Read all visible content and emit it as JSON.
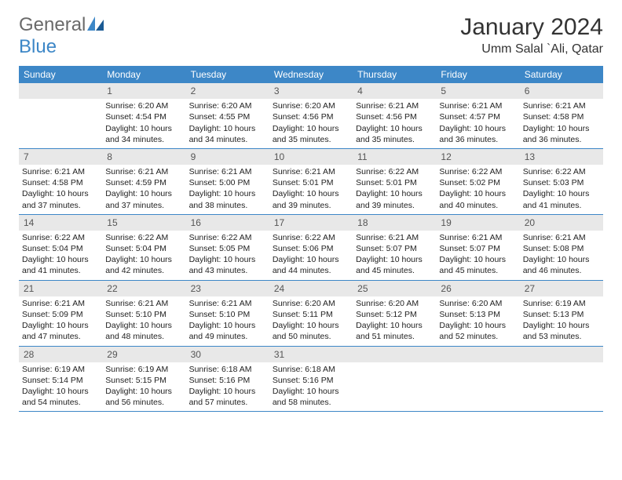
{
  "logo": {
    "word1": "General",
    "word2": "Blue"
  },
  "title": "January 2024",
  "location": "Umm Salal `Ali, Qatar",
  "colors": {
    "header_bg": "#3d87c7",
    "daynum_bg": "#e8e8e8",
    "text": "#222222",
    "logo_gray": "#6a6a6a",
    "logo_blue": "#3d87c7"
  },
  "weekdays": [
    "Sunday",
    "Monday",
    "Tuesday",
    "Wednesday",
    "Thursday",
    "Friday",
    "Saturday"
  ],
  "weeks": [
    [
      {
        "num": "",
        "sunrise": "",
        "sunset": "",
        "daylight1": "",
        "daylight2": ""
      },
      {
        "num": "1",
        "sunrise": "Sunrise: 6:20 AM",
        "sunset": "Sunset: 4:54 PM",
        "daylight1": "Daylight: 10 hours",
        "daylight2": "and 34 minutes."
      },
      {
        "num": "2",
        "sunrise": "Sunrise: 6:20 AM",
        "sunset": "Sunset: 4:55 PM",
        "daylight1": "Daylight: 10 hours",
        "daylight2": "and 34 minutes."
      },
      {
        "num": "3",
        "sunrise": "Sunrise: 6:20 AM",
        "sunset": "Sunset: 4:56 PM",
        "daylight1": "Daylight: 10 hours",
        "daylight2": "and 35 minutes."
      },
      {
        "num": "4",
        "sunrise": "Sunrise: 6:21 AM",
        "sunset": "Sunset: 4:56 PM",
        "daylight1": "Daylight: 10 hours",
        "daylight2": "and 35 minutes."
      },
      {
        "num": "5",
        "sunrise": "Sunrise: 6:21 AM",
        "sunset": "Sunset: 4:57 PM",
        "daylight1": "Daylight: 10 hours",
        "daylight2": "and 36 minutes."
      },
      {
        "num": "6",
        "sunrise": "Sunrise: 6:21 AM",
        "sunset": "Sunset: 4:58 PM",
        "daylight1": "Daylight: 10 hours",
        "daylight2": "and 36 minutes."
      }
    ],
    [
      {
        "num": "7",
        "sunrise": "Sunrise: 6:21 AM",
        "sunset": "Sunset: 4:58 PM",
        "daylight1": "Daylight: 10 hours",
        "daylight2": "and 37 minutes."
      },
      {
        "num": "8",
        "sunrise": "Sunrise: 6:21 AM",
        "sunset": "Sunset: 4:59 PM",
        "daylight1": "Daylight: 10 hours",
        "daylight2": "and 37 minutes."
      },
      {
        "num": "9",
        "sunrise": "Sunrise: 6:21 AM",
        "sunset": "Sunset: 5:00 PM",
        "daylight1": "Daylight: 10 hours",
        "daylight2": "and 38 minutes."
      },
      {
        "num": "10",
        "sunrise": "Sunrise: 6:21 AM",
        "sunset": "Sunset: 5:01 PM",
        "daylight1": "Daylight: 10 hours",
        "daylight2": "and 39 minutes."
      },
      {
        "num": "11",
        "sunrise": "Sunrise: 6:22 AM",
        "sunset": "Sunset: 5:01 PM",
        "daylight1": "Daylight: 10 hours",
        "daylight2": "and 39 minutes."
      },
      {
        "num": "12",
        "sunrise": "Sunrise: 6:22 AM",
        "sunset": "Sunset: 5:02 PM",
        "daylight1": "Daylight: 10 hours",
        "daylight2": "and 40 minutes."
      },
      {
        "num": "13",
        "sunrise": "Sunrise: 6:22 AM",
        "sunset": "Sunset: 5:03 PM",
        "daylight1": "Daylight: 10 hours",
        "daylight2": "and 41 minutes."
      }
    ],
    [
      {
        "num": "14",
        "sunrise": "Sunrise: 6:22 AM",
        "sunset": "Sunset: 5:04 PM",
        "daylight1": "Daylight: 10 hours",
        "daylight2": "and 41 minutes."
      },
      {
        "num": "15",
        "sunrise": "Sunrise: 6:22 AM",
        "sunset": "Sunset: 5:04 PM",
        "daylight1": "Daylight: 10 hours",
        "daylight2": "and 42 minutes."
      },
      {
        "num": "16",
        "sunrise": "Sunrise: 6:22 AM",
        "sunset": "Sunset: 5:05 PM",
        "daylight1": "Daylight: 10 hours",
        "daylight2": "and 43 minutes."
      },
      {
        "num": "17",
        "sunrise": "Sunrise: 6:22 AM",
        "sunset": "Sunset: 5:06 PM",
        "daylight1": "Daylight: 10 hours",
        "daylight2": "and 44 minutes."
      },
      {
        "num": "18",
        "sunrise": "Sunrise: 6:21 AM",
        "sunset": "Sunset: 5:07 PM",
        "daylight1": "Daylight: 10 hours",
        "daylight2": "and 45 minutes."
      },
      {
        "num": "19",
        "sunrise": "Sunrise: 6:21 AM",
        "sunset": "Sunset: 5:07 PM",
        "daylight1": "Daylight: 10 hours",
        "daylight2": "and 45 minutes."
      },
      {
        "num": "20",
        "sunrise": "Sunrise: 6:21 AM",
        "sunset": "Sunset: 5:08 PM",
        "daylight1": "Daylight: 10 hours",
        "daylight2": "and 46 minutes."
      }
    ],
    [
      {
        "num": "21",
        "sunrise": "Sunrise: 6:21 AM",
        "sunset": "Sunset: 5:09 PM",
        "daylight1": "Daylight: 10 hours",
        "daylight2": "and 47 minutes."
      },
      {
        "num": "22",
        "sunrise": "Sunrise: 6:21 AM",
        "sunset": "Sunset: 5:10 PM",
        "daylight1": "Daylight: 10 hours",
        "daylight2": "and 48 minutes."
      },
      {
        "num": "23",
        "sunrise": "Sunrise: 6:21 AM",
        "sunset": "Sunset: 5:10 PM",
        "daylight1": "Daylight: 10 hours",
        "daylight2": "and 49 minutes."
      },
      {
        "num": "24",
        "sunrise": "Sunrise: 6:20 AM",
        "sunset": "Sunset: 5:11 PM",
        "daylight1": "Daylight: 10 hours",
        "daylight2": "and 50 minutes."
      },
      {
        "num": "25",
        "sunrise": "Sunrise: 6:20 AM",
        "sunset": "Sunset: 5:12 PM",
        "daylight1": "Daylight: 10 hours",
        "daylight2": "and 51 minutes."
      },
      {
        "num": "26",
        "sunrise": "Sunrise: 6:20 AM",
        "sunset": "Sunset: 5:13 PM",
        "daylight1": "Daylight: 10 hours",
        "daylight2": "and 52 minutes."
      },
      {
        "num": "27",
        "sunrise": "Sunrise: 6:19 AM",
        "sunset": "Sunset: 5:13 PM",
        "daylight1": "Daylight: 10 hours",
        "daylight2": "and 53 minutes."
      }
    ],
    [
      {
        "num": "28",
        "sunrise": "Sunrise: 6:19 AM",
        "sunset": "Sunset: 5:14 PM",
        "daylight1": "Daylight: 10 hours",
        "daylight2": "and 54 minutes."
      },
      {
        "num": "29",
        "sunrise": "Sunrise: 6:19 AM",
        "sunset": "Sunset: 5:15 PM",
        "daylight1": "Daylight: 10 hours",
        "daylight2": "and 56 minutes."
      },
      {
        "num": "30",
        "sunrise": "Sunrise: 6:18 AM",
        "sunset": "Sunset: 5:16 PM",
        "daylight1": "Daylight: 10 hours",
        "daylight2": "and 57 minutes."
      },
      {
        "num": "31",
        "sunrise": "Sunrise: 6:18 AM",
        "sunset": "Sunset: 5:16 PM",
        "daylight1": "Daylight: 10 hours",
        "daylight2": "and 58 minutes."
      },
      {
        "num": "",
        "sunrise": "",
        "sunset": "",
        "daylight1": "",
        "daylight2": ""
      },
      {
        "num": "",
        "sunrise": "",
        "sunset": "",
        "daylight1": "",
        "daylight2": ""
      },
      {
        "num": "",
        "sunrise": "",
        "sunset": "",
        "daylight1": "",
        "daylight2": ""
      }
    ]
  ]
}
